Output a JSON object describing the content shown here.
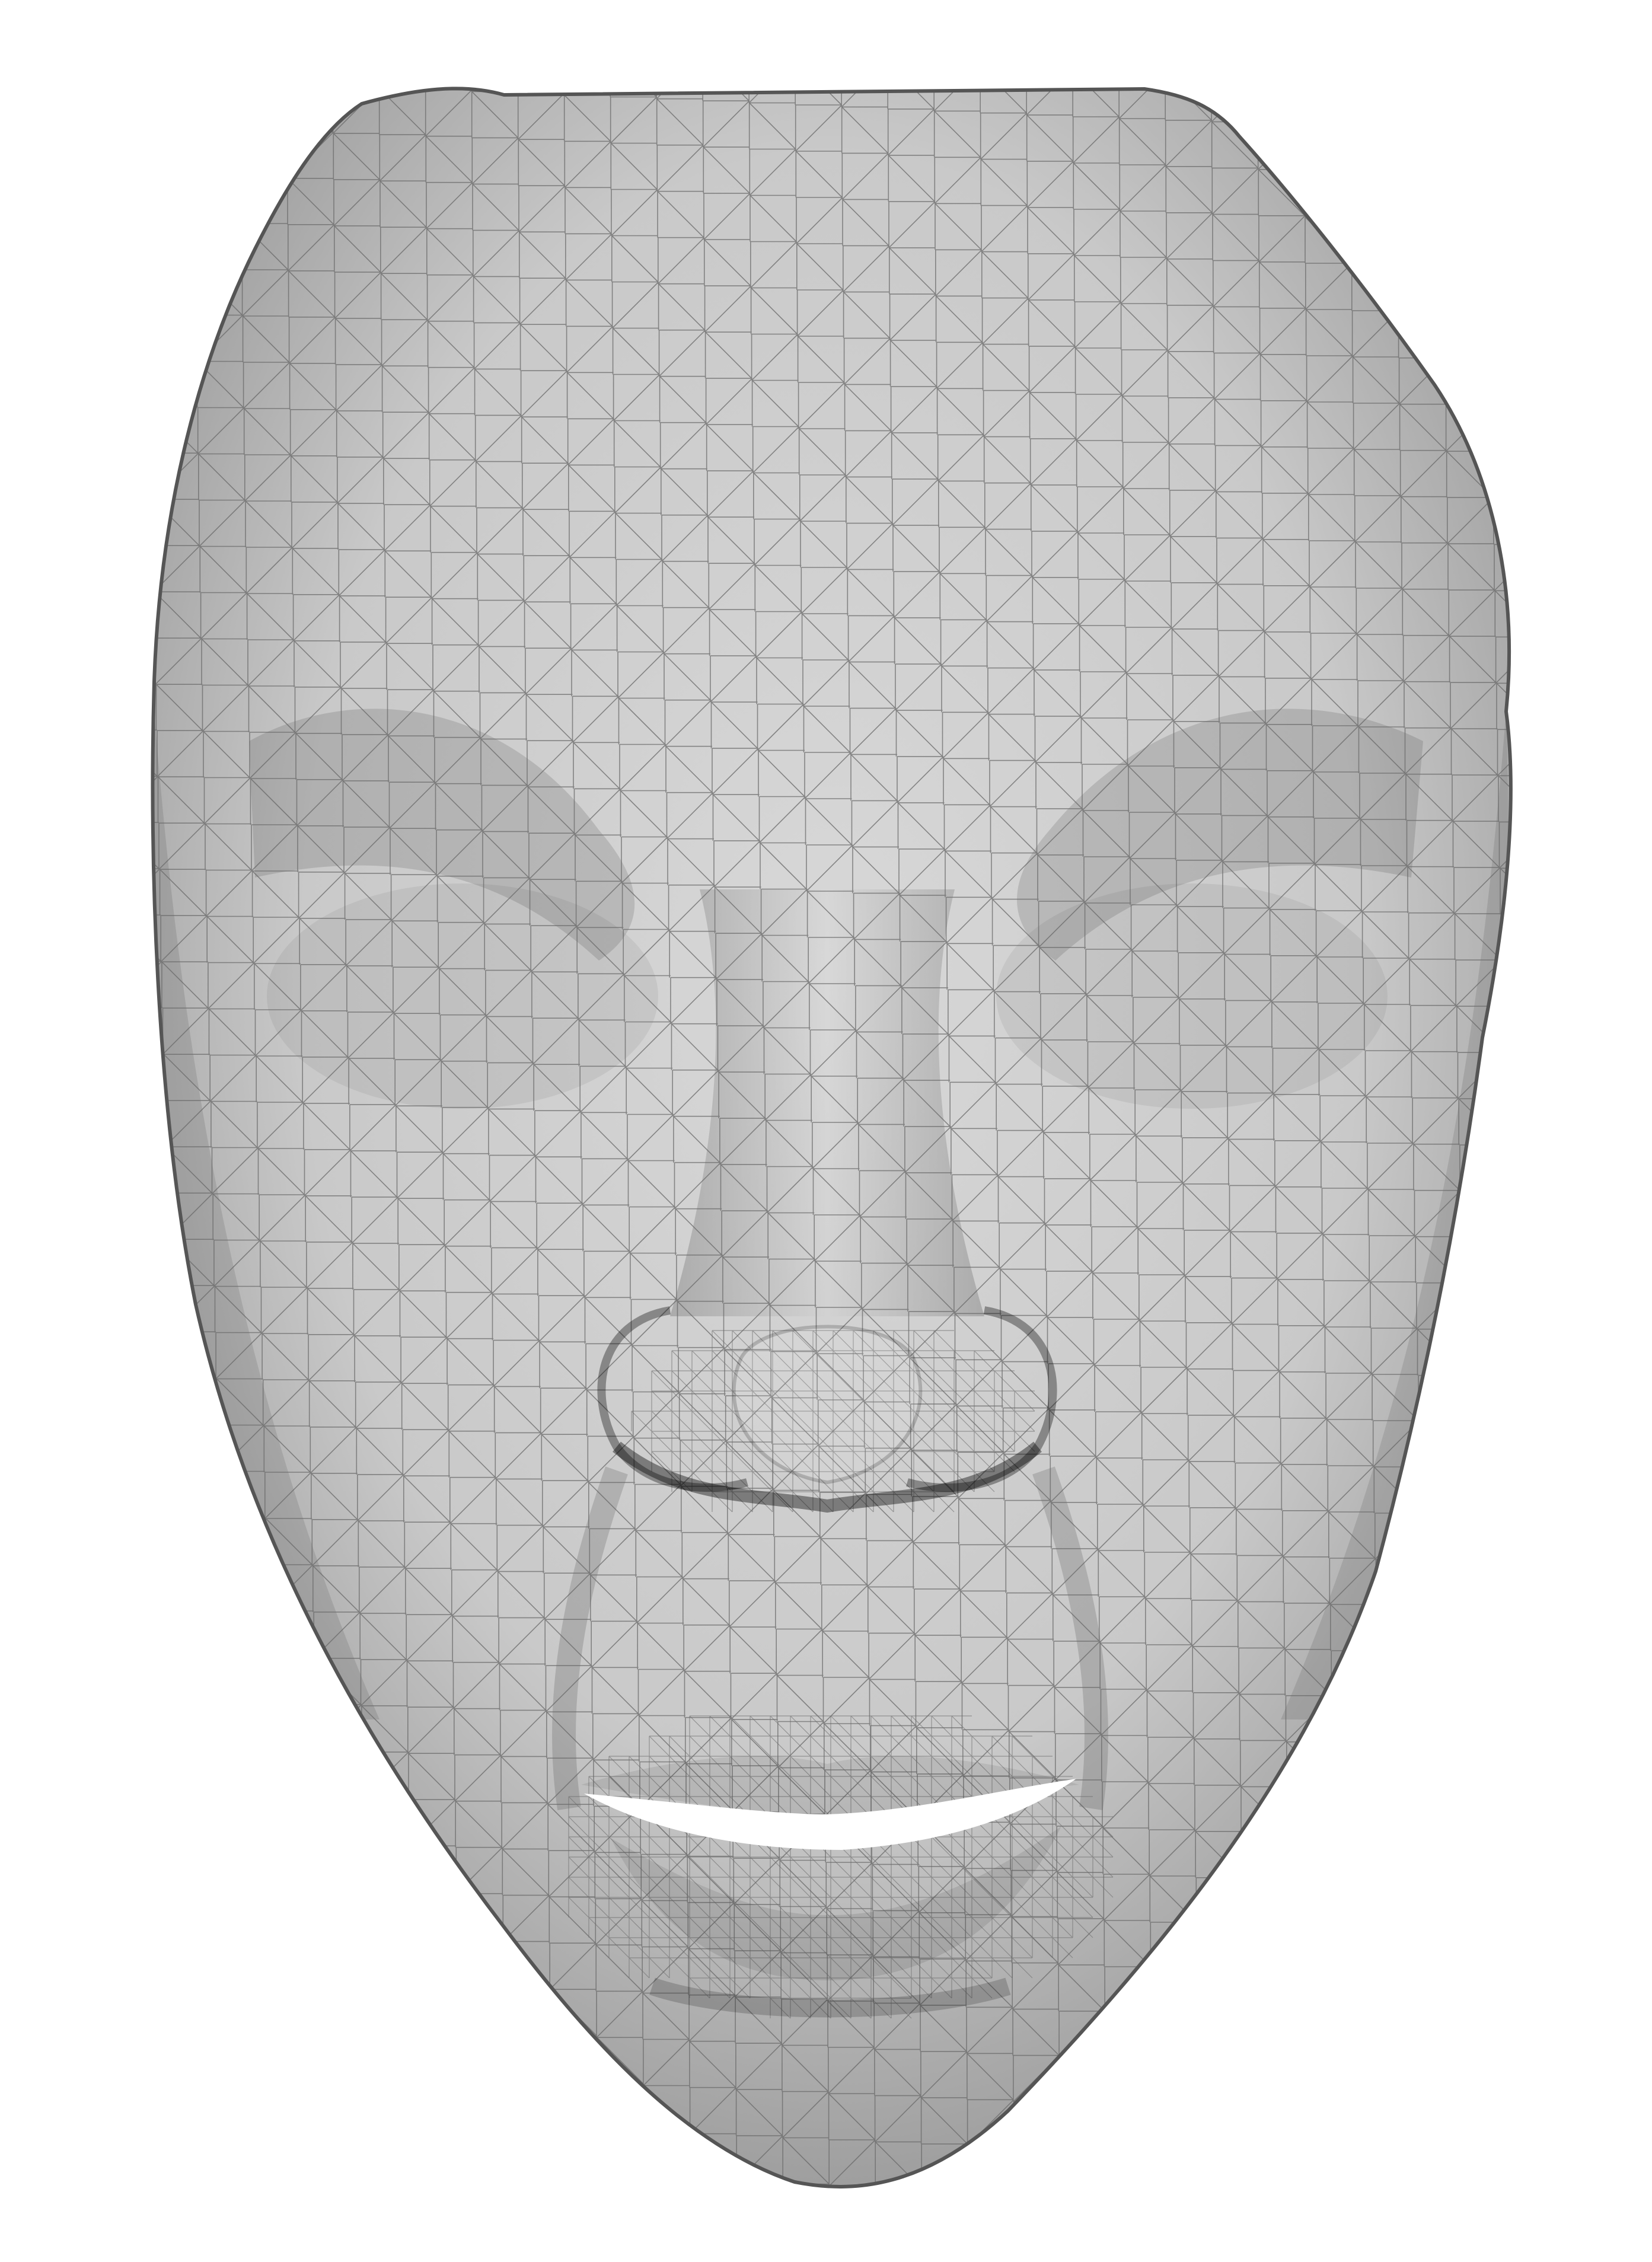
{
  "scene": {
    "subject": "face-mesh",
    "render_style": "wireframe-shaded",
    "colors": {
      "background": "#ffffff",
      "face_fill": "#c9c9c9",
      "face_highlight": "#d8d8d8",
      "face_shadow": "#9a9a9a",
      "mesh_line": "#6a6a6a",
      "outline": "#555555",
      "mouth_gap": "#ffffff"
    }
  }
}
